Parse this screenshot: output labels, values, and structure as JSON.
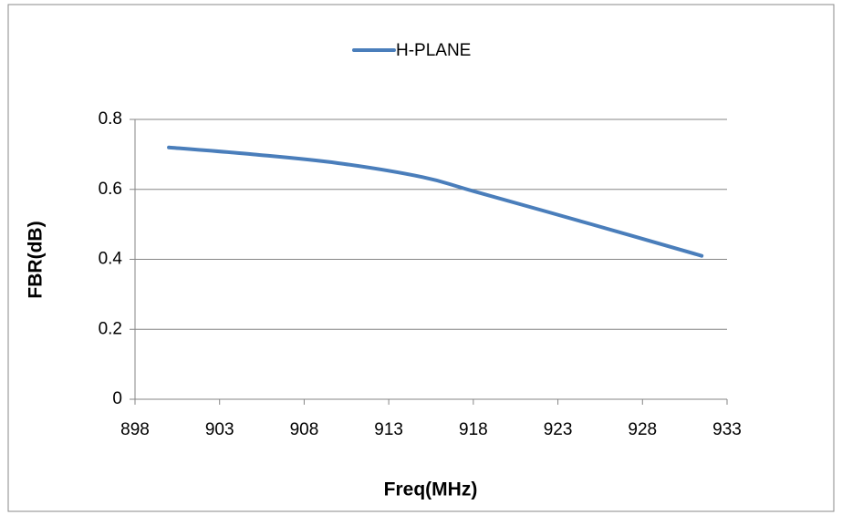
{
  "chart_data": {
    "type": "line",
    "x": [
      900,
      905,
      910,
      915,
      918,
      925,
      931.5
    ],
    "series": [
      {
        "name": "H-PLANE",
        "color": "#4a7ebb",
        "values": [
          0.72,
          0.7,
          0.675,
          0.635,
          0.595,
          0.5,
          0.41
        ]
      }
    ],
    "xlabel": "Freq(MHz)",
    "ylabel": "FBR(dB)",
    "xlim": [
      898,
      933
    ],
    "xticks": [
      898,
      903,
      908,
      913,
      918,
      923,
      928,
      933
    ],
    "ylim": [
      0,
      0.8
    ],
    "yticks": [
      0,
      0.2,
      0.4,
      0.6,
      0.8
    ],
    "grid": true,
    "legend": "top",
    "smooth": true
  }
}
